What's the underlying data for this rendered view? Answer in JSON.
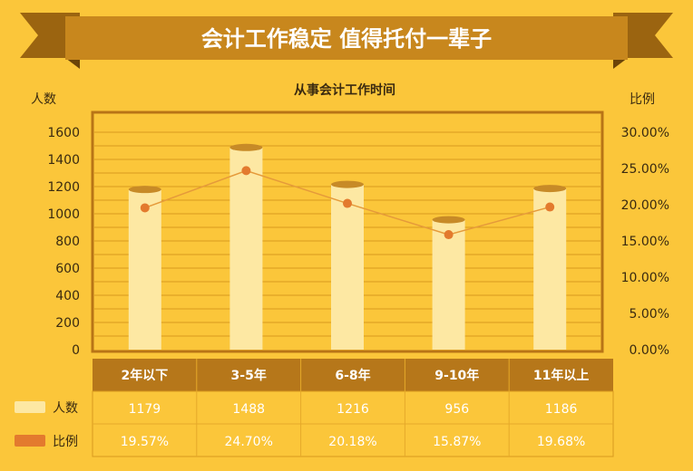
{
  "header": {
    "title": "会计工作稳定 值得托付一辈子"
  },
  "chart_data": {
    "type": "bar",
    "title": "从事会计工作时间",
    "ylabel": "人数",
    "y2label": "比例",
    "ylim": [
      0,
      1600
    ],
    "yticks": [
      "0",
      "200",
      "400",
      "600",
      "800",
      "1000",
      "1200",
      "1400",
      "1600"
    ],
    "y2lim": [
      0,
      30
    ],
    "y2ticks": [
      "0.00%",
      "5.00%",
      "10.00%",
      "15.00%",
      "20.00%",
      "25.00%",
      "30.00%"
    ],
    "categories": [
      "2年以下",
      "3-5年",
      "6-8年",
      "9-10年",
      "11年以上"
    ],
    "series": [
      {
        "name": "人数",
        "type": "bar",
        "values": [
          1179,
          1488,
          1216,
          956,
          1186
        ],
        "labels": [
          "1179",
          "1488",
          "1216",
          "956",
          "1186"
        ]
      },
      {
        "name": "比例",
        "type": "line",
        "values": [
          19.57,
          24.7,
          20.18,
          15.87,
          19.68
        ],
        "labels": [
          "19.57%",
          "24.70%",
          "20.18%",
          "15.87%",
          "19.68%"
        ]
      }
    ],
    "grid": true,
    "legend": "table-left"
  },
  "colors": {
    "background": "#fbc63a",
    "ribbon": "#c48619",
    "ribbon_dark": "#8e5b0c",
    "plot_frame": "#b87416",
    "gridline": "#d99a1f",
    "bar_fill": "#fde8a3",
    "bar_top": "#c78a27",
    "line": "#e59a3a",
    "marker": "#e37a2e",
    "table_header": "#b6771a",
    "table_cell_text": "#ffffff",
    "axis_text": "#3a2a10"
  }
}
